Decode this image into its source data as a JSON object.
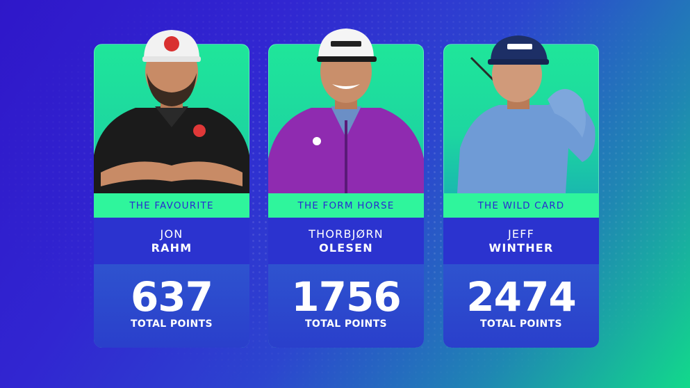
{
  "cards": [
    {
      "tag": "THE FAVOURITE",
      "first_name": "JON",
      "last_name": "RAHM",
      "points": "637",
      "points_label": "TOTAL POINTS",
      "cap_color": "#f2f2f2",
      "shirt_color": "#1b1b1b",
      "skin_color": "#c88b66"
    },
    {
      "tag": "THE FORM HORSE",
      "first_name": "THORBJØRN",
      "last_name": "OLESEN",
      "points": "1756",
      "points_label": "TOTAL POINTS",
      "cap_color": "#f5f5f5",
      "shirt_color": "#8f2bb0",
      "skin_color": "#c98f6b"
    },
    {
      "tag": "THE WILD CARD",
      "first_name": "JEFF",
      "last_name": "WINTHER",
      "points": "2474",
      "points_label": "TOTAL POINTS",
      "cap_color": "#1d2f66",
      "shirt_color": "#6f9bd6",
      "skin_color": "#d09a7a"
    }
  ]
}
